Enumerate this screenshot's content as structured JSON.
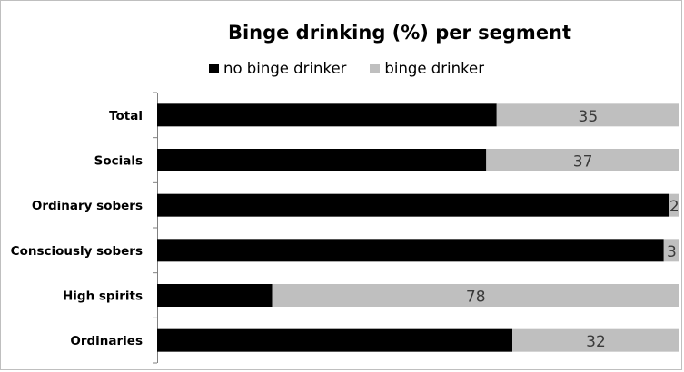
{
  "chart_data": {
    "type": "bar",
    "orientation": "horizontal",
    "stacked": true,
    "title": "Binge drinking (%) per segment",
    "xlabel": "",
    "ylabel": "",
    "xlim": [
      0,
      100
    ],
    "grid": false,
    "legend_position": "top",
    "categories": [
      "Total",
      "Socials",
      "Ordinary sobers",
      "Consciously sobers",
      "High spirits",
      "Ordinaries"
    ],
    "series": [
      {
        "name": "no binge drinker",
        "color": "#000000",
        "values": [
          65,
          63,
          98,
          97,
          22,
          68
        ],
        "show_labels": false
      },
      {
        "name": "binge drinker",
        "color": "#bfbfbf",
        "values": [
          35,
          37,
          2,
          3,
          78,
          32
        ],
        "show_labels": true
      }
    ]
  }
}
